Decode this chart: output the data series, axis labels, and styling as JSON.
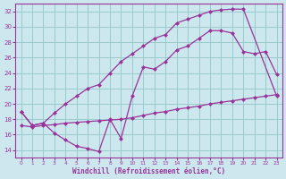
{
  "xlabel": "Windchill (Refroidissement éolien,°C)",
  "bg_color": "#cce8ee",
  "line_color": "#993399",
  "grid_color": "#99cccc",
  "xlim": [
    -0.5,
    23.5
  ],
  "ylim": [
    13,
    33
  ],
  "xticks": [
    0,
    1,
    2,
    3,
    4,
    5,
    6,
    7,
    8,
    9,
    10,
    11,
    12,
    13,
    14,
    15,
    16,
    17,
    18,
    19,
    20,
    21,
    22,
    23
  ],
  "yticks": [
    14,
    16,
    18,
    20,
    22,
    24,
    26,
    28,
    30,
    32
  ],
  "curve1_x": [
    0,
    1,
    2,
    3,
    4,
    5,
    6,
    7,
    8,
    9,
    10,
    11,
    12,
    13,
    14,
    15,
    16,
    17,
    18,
    19,
    20,
    23
  ],
  "curve1_y": [
    19.0,
    17.2,
    17.5,
    18.8,
    20.0,
    21.0,
    22.0,
    22.5,
    24.0,
    25.5,
    26.5,
    27.5,
    28.5,
    29.0,
    30.5,
    31.0,
    31.5,
    32.0,
    32.2,
    32.3,
    32.3,
    21.0
  ],
  "curve2_x": [
    0,
    1,
    2,
    3,
    4,
    5,
    6,
    7,
    8,
    9,
    10,
    11,
    12,
    13,
    14,
    15,
    16,
    17,
    18,
    19,
    20,
    21,
    22,
    23
  ],
  "curve2_y": [
    19.0,
    17.2,
    17.5,
    16.2,
    15.3,
    14.5,
    14.2,
    13.8,
    18.0,
    15.5,
    21.0,
    24.8,
    24.5,
    25.5,
    27.0,
    27.5,
    28.5,
    29.5,
    29.5,
    29.2,
    26.8,
    26.5,
    26.8,
    23.8
  ],
  "curve3_x": [
    0,
    1,
    2,
    3,
    4,
    5,
    6,
    7,
    8,
    9,
    10,
    11,
    12,
    13,
    14,
    15,
    16,
    17,
    18,
    19,
    20,
    21,
    22,
    23
  ],
  "curve3_y": [
    17.2,
    17.0,
    17.2,
    17.3,
    17.5,
    17.6,
    17.7,
    17.8,
    17.9,
    18.0,
    18.2,
    18.5,
    18.8,
    19.0,
    19.3,
    19.5,
    19.7,
    20.0,
    20.2,
    20.4,
    20.6,
    20.8,
    21.0,
    21.2
  ]
}
